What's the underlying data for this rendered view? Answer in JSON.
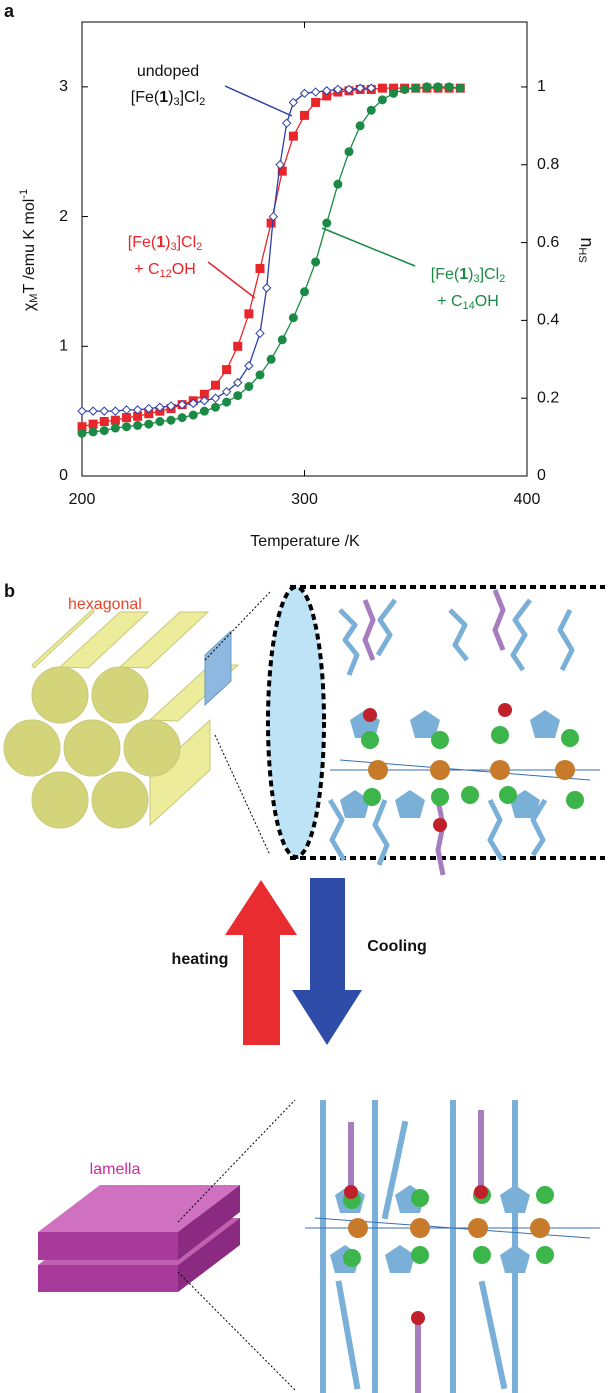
{
  "panel_labels": {
    "a": "a",
    "b": "b"
  },
  "chart_data": {
    "type": "line",
    "xlabel": "Temperature /K",
    "ylabel": [
      "χ",
      "M",
      "T /emu K mol",
      "-1"
    ],
    "y2label": [
      "n",
      "HS"
    ],
    "xlim": [
      200,
      400
    ],
    "xticks": [
      200,
      300,
      400
    ],
    "ylim": [
      0,
      3.5
    ],
    "yticks": [
      0,
      1,
      2,
      3
    ],
    "y2lim": [
      0,
      1.167
    ],
    "y2ticks": [
      0,
      0.2,
      0.4,
      0.6,
      0.8,
      1
    ],
    "annotations": {
      "undoped": [
        "undoped",
        "[Fe(",
        "1",
        ")",
        "3",
        "]Cl",
        "2"
      ],
      "c12": [
        "[Fe(",
        "1",
        ")",
        "3",
        "]Cl",
        "2",
        "+ C",
        "12",
        "OH"
      ],
      "c14": [
        "[Fe(",
        "1",
        ")",
        "3",
        "]Cl",
        "2",
        "+ C",
        "14",
        "OH"
      ]
    },
    "series": [
      {
        "color": "#e8262b",
        "marker": "square",
        "filled": true,
        "x": [
          200,
          205,
          210,
          215,
          220,
          225,
          230,
          235,
          240,
          245,
          250,
          255,
          260,
          265,
          270,
          275,
          280,
          285,
          290,
          295,
          300,
          305,
          310,
          315,
          320,
          325,
          330,
          335,
          340,
          345,
          350,
          355,
          360,
          365,
          370
        ],
        "values": [
          0.38,
          0.4,
          0.42,
          0.43,
          0.45,
          0.46,
          0.48,
          0.5,
          0.52,
          0.55,
          0.58,
          0.63,
          0.7,
          0.82,
          1.0,
          1.25,
          1.6,
          1.95,
          2.35,
          2.62,
          2.78,
          2.88,
          2.93,
          2.96,
          2.97,
          2.98,
          2.98,
          2.99,
          2.99,
          2.99,
          2.99,
          2.99,
          2.99,
          2.99,
          2.99
        ]
      },
      {
        "color": "#1a8a45",
        "marker": "circle",
        "filled": true,
        "x": [
          200,
          205,
          210,
          215,
          220,
          225,
          230,
          235,
          240,
          245,
          250,
          255,
          260,
          265,
          270,
          275,
          280,
          285,
          290,
          295,
          300,
          305,
          310,
          315,
          320,
          325,
          330,
          335,
          340,
          345,
          350,
          355,
          360,
          365,
          370
        ],
        "values": [
          0.33,
          0.34,
          0.35,
          0.37,
          0.38,
          0.39,
          0.4,
          0.42,
          0.43,
          0.45,
          0.47,
          0.5,
          0.53,
          0.57,
          0.62,
          0.69,
          0.78,
          0.9,
          1.05,
          1.22,
          1.42,
          1.65,
          1.95,
          2.25,
          2.5,
          2.7,
          2.82,
          2.9,
          2.95,
          2.98,
          2.99,
          3.0,
          3.0,
          3.0,
          2.99
        ]
      },
      {
        "color": "#2b3fa8",
        "marker": "diamond",
        "filled": false,
        "x": [
          200,
          205,
          210,
          215,
          220,
          225,
          230,
          235,
          240,
          245,
          250,
          255,
          260,
          265,
          270,
          275,
          280,
          283,
          286,
          289,
          292,
          295,
          300,
          305,
          310,
          315,
          320,
          325,
          330
        ],
        "values": [
          0.5,
          0.5,
          0.5,
          0.5,
          0.51,
          0.51,
          0.52,
          0.53,
          0.54,
          0.55,
          0.56,
          0.58,
          0.6,
          0.65,
          0.72,
          0.85,
          1.1,
          1.45,
          2.0,
          2.4,
          2.72,
          2.88,
          2.95,
          2.96,
          2.97,
          2.98,
          2.98,
          2.99,
          2.99
        ]
      }
    ]
  },
  "diagram": {
    "hexagonal": "hexagonal",
    "heating": "heating",
    "cooling": "Cooling",
    "lamella": "lamella"
  }
}
